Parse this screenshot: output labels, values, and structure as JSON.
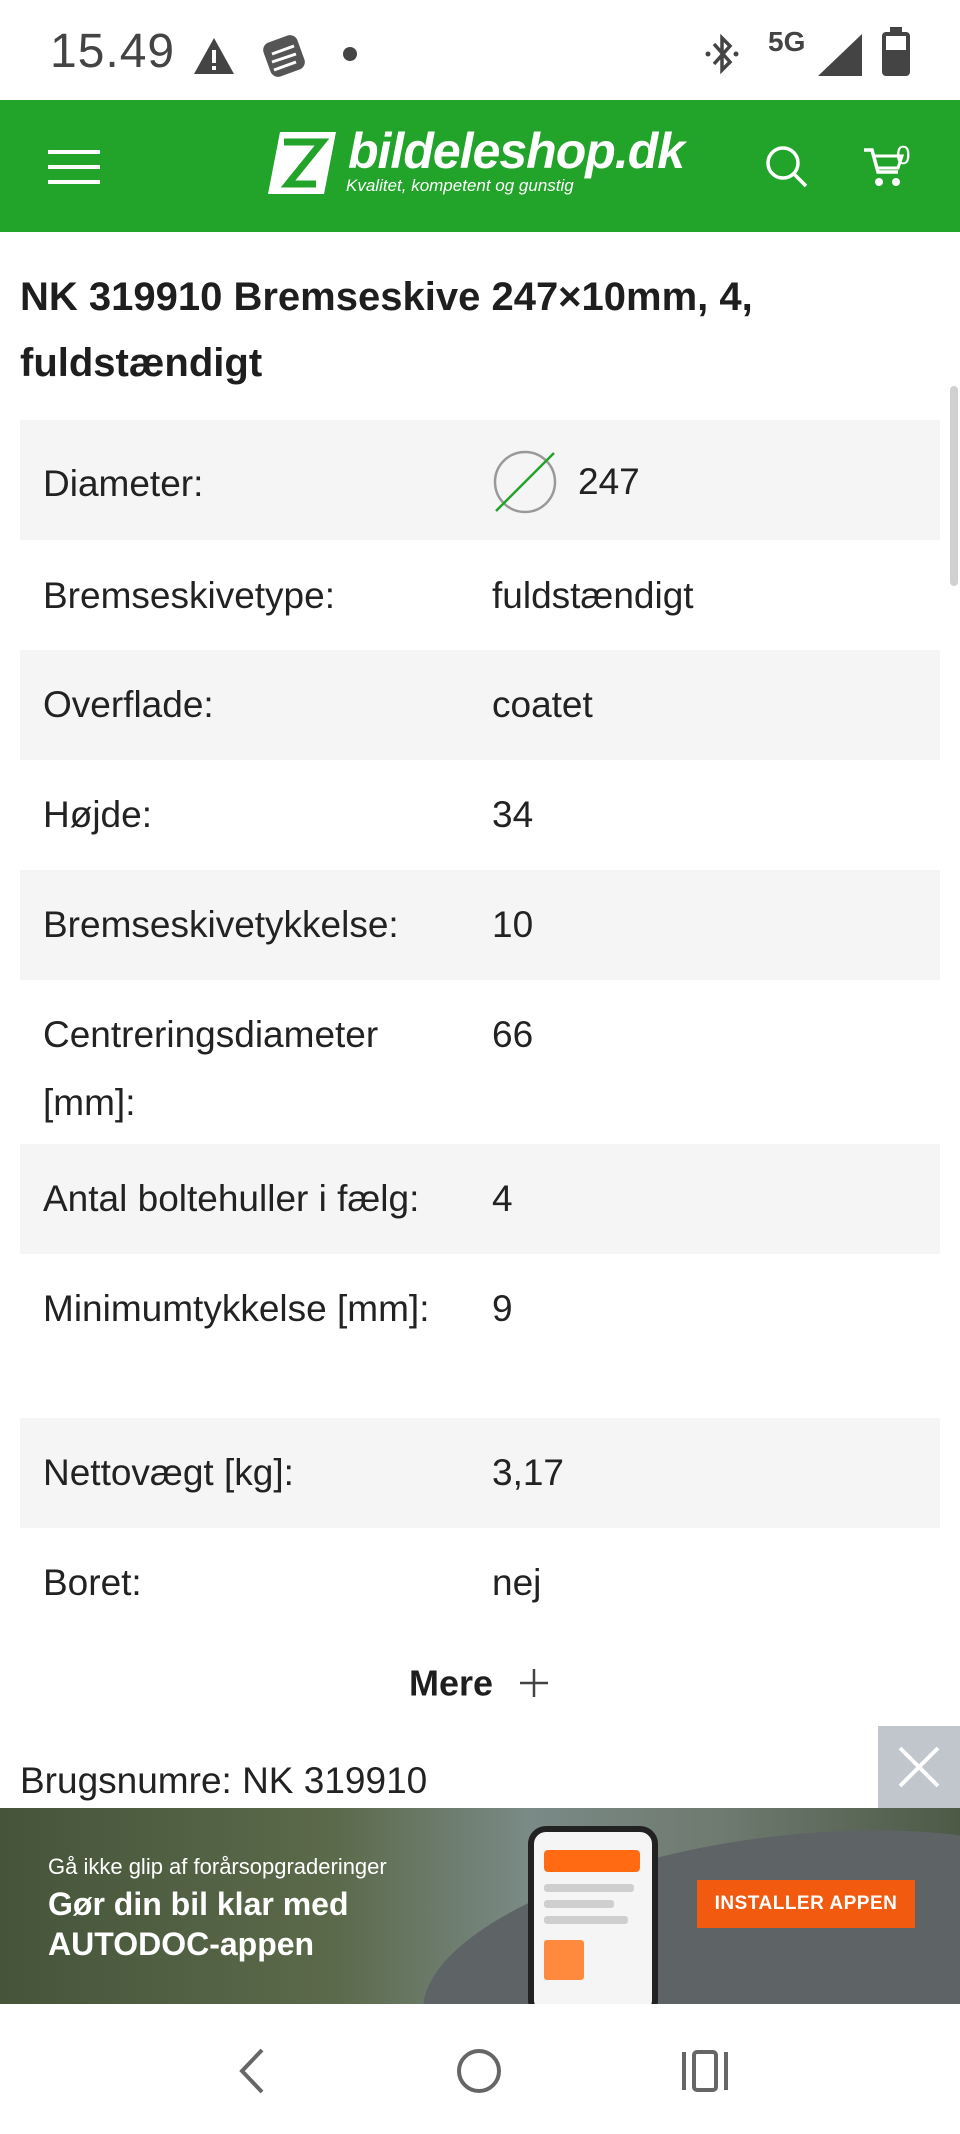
{
  "status_bar": {
    "time": "15.49",
    "network": "5G"
  },
  "header": {
    "logo_name": "bildeleshop.dk",
    "logo_tagline": "Kvalitet, kompetent og gunstig",
    "cart_count": "0",
    "brand_color": "#22a32a"
  },
  "product": {
    "title": "NK 319910 Bremseskive 247×10mm, 4, fuldstændigt"
  },
  "specs": [
    {
      "label": "Diameter:",
      "value": "247"
    },
    {
      "label": "Bremseskivetype:",
      "value": "fuldstændigt"
    },
    {
      "label": "Overflade:",
      "value": "coatet"
    },
    {
      "label": "Højde:",
      "value": "34"
    },
    {
      "label": "Bremseskivetykkelse:",
      "value": "10"
    },
    {
      "label": "Centreringsdiameter [mm]:",
      "value": "66"
    },
    {
      "label": "Antal boltehuller i fælg:",
      "value": "4"
    },
    {
      "label": "Minimumtykkelse [mm]:",
      "value": "9"
    },
    {
      "label": "Nettovægt [kg]:",
      "value": "3,17"
    },
    {
      "label": "Boret:",
      "value": "nej"
    }
  ],
  "more_button": {
    "label": "Mere"
  },
  "usage_numbers": "Brugsnumre: NK 319910",
  "ad": {
    "subtitle": "Gå ikke glip af forårsopgraderinger",
    "headline": "Gør din bil klar med AUTODOC-appen",
    "cta": "INSTALLER APPEN",
    "cta_color": "#f15a0f"
  }
}
